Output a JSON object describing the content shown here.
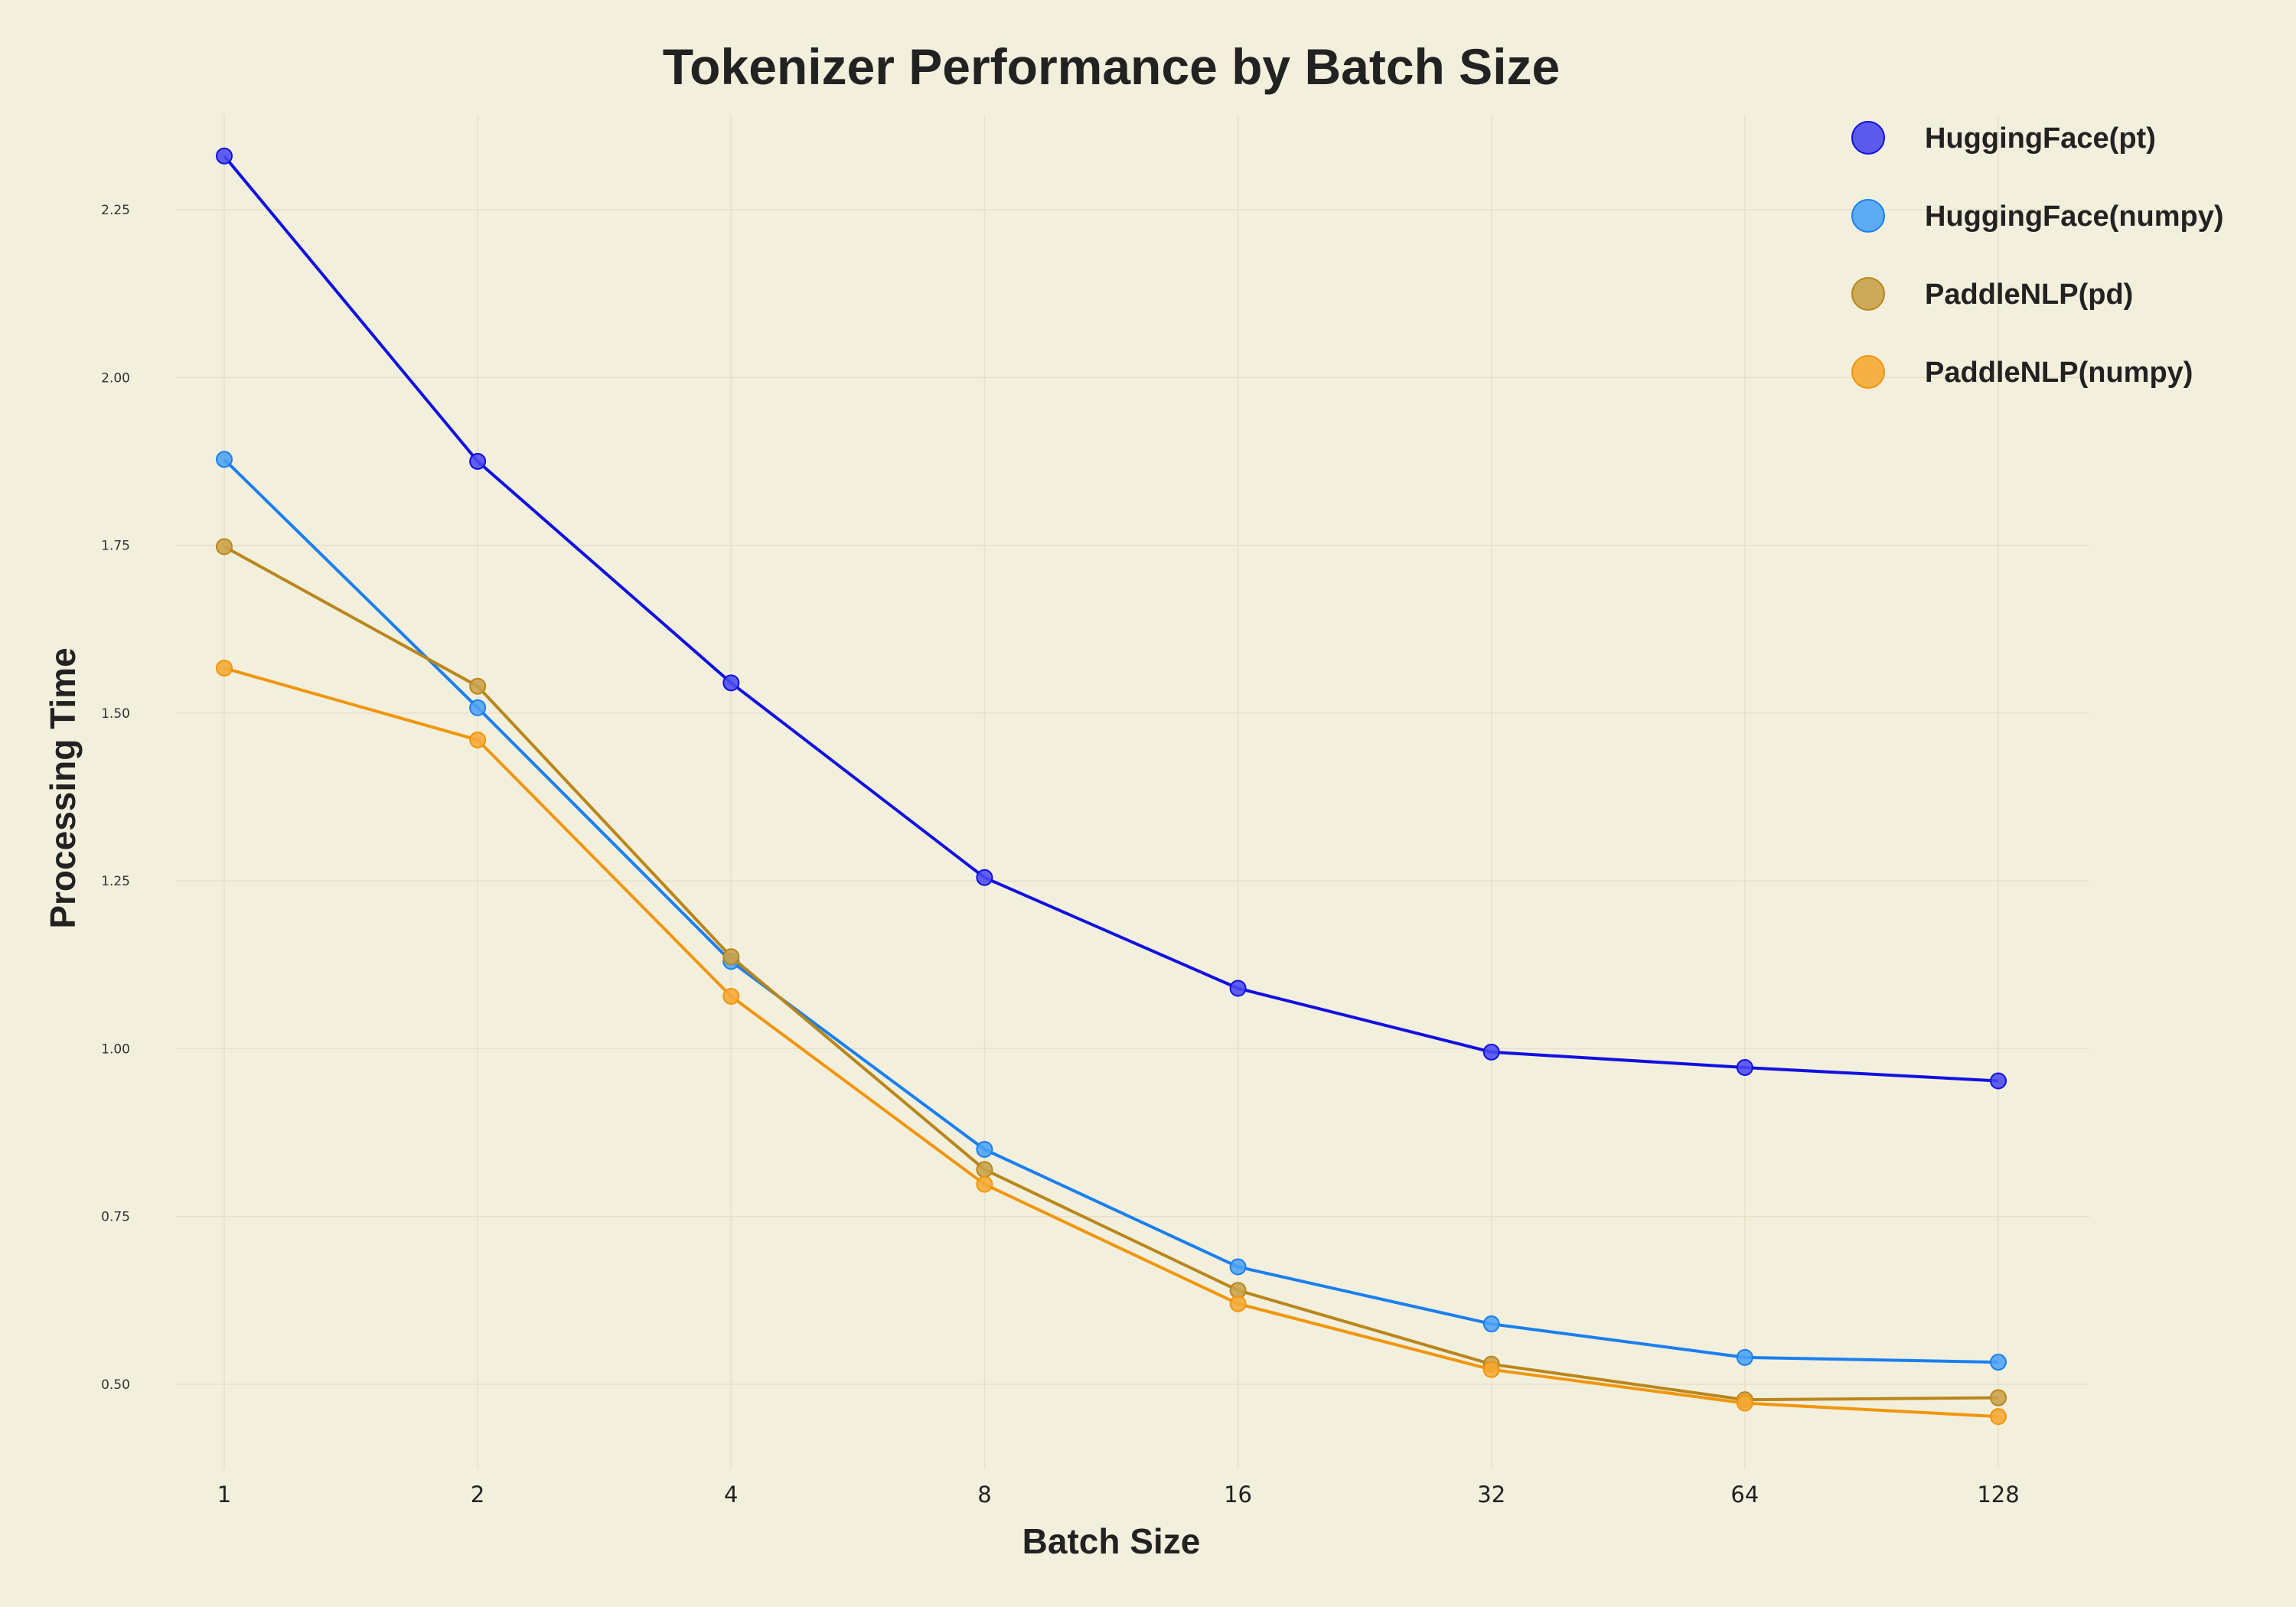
{
  "chart_data": {
    "type": "line",
    "title": "Tokenizer Performance by Batch Size",
    "xlabel": "Batch Size",
    "ylabel": "Processing Time",
    "x": [
      1,
      2,
      4,
      8,
      16,
      32,
      64,
      128
    ],
    "x_tick_labels": [
      "1",
      "2",
      "4",
      "8",
      "16",
      "32",
      "64",
      "128"
    ],
    "x_scale": "log2",
    "y_ticks": [
      0.5,
      0.75,
      1.0,
      1.25,
      1.5,
      1.75,
      2.0,
      2.25
    ],
    "y_tick_labels": [
      "0.50",
      "0.75",
      "1.00",
      "1.25",
      "1.50",
      "1.75",
      "2.00",
      "2.25"
    ],
    "ylim": [
      0.37,
      2.4
    ],
    "grid": true,
    "legend_position": "top-right",
    "series": [
      {
        "name": "HuggingFace(pt)",
        "color": "#1010e0",
        "marker_color": "#4a4af0",
        "values": [
          2.33,
          1.875,
          1.545,
          1.255,
          1.09,
          0.995,
          0.972,
          0.952
        ]
      },
      {
        "name": "HuggingFace(numpy)",
        "color": "#1a7ff0",
        "marker_color": "#4da3f5",
        "values": [
          1.878,
          1.508,
          1.13,
          0.85,
          0.675,
          0.59,
          0.54,
          0.533
        ]
      },
      {
        "name": "PaddleNLP(pd)",
        "color": "#b8861a",
        "marker_color": "#c9a24a",
        "values": [
          1.748,
          1.54,
          1.137,
          0.82,
          0.64,
          0.53,
          0.477,
          0.48
        ]
      },
      {
        "name": "PaddleNLP(numpy)",
        "color": "#f0960a",
        "marker_color": "#f5aa35",
        "values": [
          1.567,
          1.46,
          1.078,
          0.798,
          0.62,
          0.522,
          0.472,
          0.452
        ]
      }
    ]
  }
}
